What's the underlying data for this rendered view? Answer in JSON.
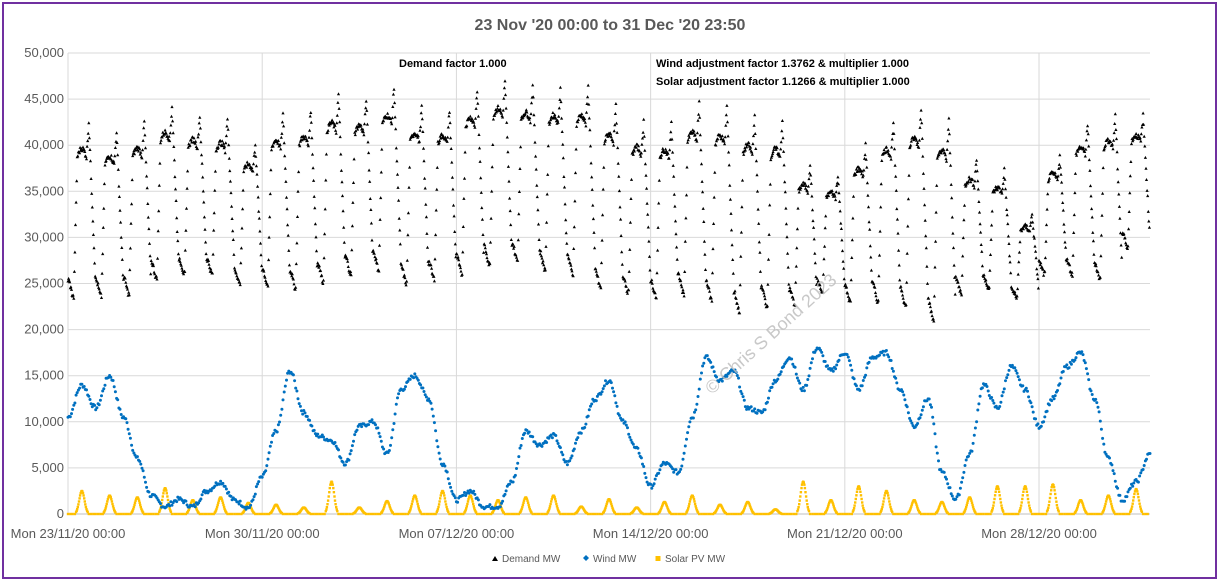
{
  "chart_data": {
    "type": "scatter",
    "title": "23 Nov '20 00:00 to 31 Dec '20 23:50",
    "xlabel": "",
    "ylabel": "",
    "x_range_days": [
      0,
      39
    ],
    "ylim": [
      0,
      50000
    ],
    "y_ticks": [
      "0",
      "5,000",
      "10,000",
      "15,000",
      "20,000",
      "25,000",
      "30,000",
      "35,000",
      "40,000",
      "45,000",
      "50,000"
    ],
    "x_ticks": [
      "Mon 23/11/20 00:00",
      "Mon 30/11/20 00:00",
      "Mon 07/12/20 00:00",
      "Mon 14/12/20 00:00",
      "Mon 21/12/20 00:00",
      "Mon 28/12/20 00:00"
    ],
    "annotations": {
      "demand": "Demand factor 1.000",
      "wind": "Wind adjustment factor 1.3762 & multiplier 1.000",
      "solar": "Solar adjustment factor 1.1266 & multiplier 1.000"
    },
    "watermark": "© Chris S Bond 2023",
    "grid": "vertical and horizontal",
    "legend_position": "bottom",
    "series": [
      {
        "name": "Demand MW",
        "color": "#000000",
        "marker": "triangle",
        "daily_peaks": [
          42500,
          41500,
          42500,
          44200,
          43200,
          42800,
          40200,
          43300,
          43800,
          45500,
          45000,
          46200,
          44200,
          43800,
          46000,
          47000,
          46400,
          46200,
          46300,
          44200,
          42600,
          42300,
          44500,
          44200,
          43200,
          42600,
          38000,
          36800,
          40000,
          42500,
          44000,
          42700,
          38500,
          37300,
          32500,
          38800,
          42200,
          43200,
          43200
        ],
        "daily_troughs": [
          23500,
          23600,
          23800,
          25500,
          26000,
          26000,
          25000,
          24800,
          24500,
          25200,
          26000,
          26500,
          25000,
          25500,
          26000,
          27000,
          27500,
          26500,
          26000,
          24500,
          24000,
          23500,
          23800,
          23200,
          22000,
          22500,
          22800,
          24000,
          23000,
          23000,
          22500,
          21000,
          24000,
          24500,
          23500,
          26000,
          26000,
          25500,
          29000
        ]
      },
      {
        "name": "Wind MW",
        "color": "#0070c0",
        "marker": "diamond",
        "x_days": [
          0,
          0.5,
          1,
          1.5,
          2,
          2.5,
          3,
          3.5,
          4,
          4.5,
          5,
          5.5,
          6,
          6.5,
          7,
          7.5,
          8,
          8.5,
          9,
          9.5,
          10,
          10.5,
          11,
          11.5,
          12,
          12.5,
          13,
          13.5,
          14,
          14.5,
          15,
          15.5,
          16,
          16.5,
          17,
          17.5,
          18,
          18.5,
          19,
          19.5,
          20,
          20.5,
          21,
          21.5,
          22,
          22.5,
          23,
          23.5,
          24,
          24.5,
          25,
          25.5,
          26,
          26.5,
          27,
          27.5,
          28,
          28.5,
          29,
          29.5,
          30,
          30.5,
          31,
          31.5,
          32,
          32.5,
          33,
          33.5,
          34,
          34.5,
          35,
          35.5,
          36,
          36.5,
          37,
          37.5,
          38,
          38.5,
          39
        ],
        "values": [
          10500,
          14000,
          11500,
          15000,
          10500,
          6000,
          2000,
          800,
          1600,
          800,
          2500,
          3500,
          1500,
          700,
          4000,
          9000,
          15500,
          11000,
          8500,
          8000,
          5500,
          9500,
          10000,
          6500,
          13500,
          15000,
          12500,
          5500,
          1500,
          2500,
          800,
          800,
          3500,
          9000,
          7500,
          8500,
          5500,
          9000,
          12500,
          14500,
          10000,
          7000,
          3000,
          5500,
          4500,
          10500,
          17000,
          14500,
          15500,
          11500,
          11000,
          14500,
          17000,
          13500,
          18000,
          15500,
          17500,
          13500,
          17000,
          17500,
          13500,
          9500,
          12500,
          4500,
          1600,
          6500,
          14000,
          11500,
          16000,
          13500,
          9500,
          12500,
          16000,
          17500,
          12500,
          6000,
          1500,
          3500,
          6500
        ]
      },
      {
        "name": "Solar PV MW",
        "color": "#ffc000",
        "marker": "square",
        "daily_peaks": [
          2500,
          2000,
          1800,
          2800,
          1500,
          1800,
          1200,
          1000,
          700,
          3500,
          700,
          1400,
          2000,
          2500,
          2000,
          1500,
          1800,
          2000,
          800,
          1600,
          700,
          1300,
          2000,
          1000,
          1300,
          500,
          3500,
          1500,
          3000,
          2500,
          1500,
          1300,
          1800,
          3000,
          3000,
          3200,
          1500,
          2000,
          2700
        ],
        "daily_peak_hour": 12
      }
    ]
  }
}
